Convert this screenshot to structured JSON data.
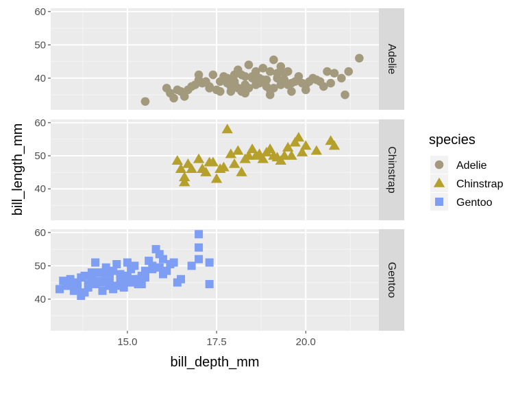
{
  "chart_data": {
    "type": "scatter",
    "facet_by": "species",
    "xlabel": "bill_depth_mm",
    "ylabel": "bill_length_mm",
    "xlim": [
      12.85,
      22.05
    ],
    "ylim": [
      30.5,
      61.0
    ],
    "xticks": [
      15.0,
      17.5,
      20.0
    ],
    "xtick_labels": [
      "15.0",
      "17.5",
      "20.0"
    ],
    "yticks": [
      40,
      50,
      60
    ],
    "ytick_labels": [
      "40",
      "50",
      "60"
    ],
    "grid": true,
    "legend": {
      "title": "species",
      "position": "right",
      "entries": [
        "Adelie",
        "Chinstrap",
        "Gentoo"
      ]
    },
    "series": [
      {
        "name": "Adelie",
        "color": "#A39A7E",
        "shape": "circle",
        "x": [
          15.5,
          16.2,
          16.5,
          16.9,
          16.7,
          17.0,
          17.3,
          17.7,
          18.0,
          18.2,
          18.4,
          18.7,
          18.9,
          19.1,
          19.3,
          19.5,
          19.7,
          20.0,
          20.3,
          20.6,
          21.1,
          21.5,
          16.1,
          16.6,
          17.1,
          17.4,
          17.6,
          17.9,
          18.1,
          18.3,
          18.5,
          18.6,
          18.8,
          19.0,
          19.2,
          19.4,
          19.6,
          19.9,
          20.2,
          20.5,
          20.8,
          21.2,
          16.3,
          16.8,
          17.2,
          17.5,
          17.8,
          18.0,
          18.2,
          18.4,
          18.6,
          18.9,
          19.1,
          19.3,
          19.8,
          20.1,
          20.7,
          21.0,
          17.0,
          17.9,
          18.3,
          18.7,
          19.0,
          19.4,
          17.3,
          17.8,
          18.1,
          18.5,
          18.8,
          19.2,
          19.5,
          20.4,
          16.4,
          17.6,
          18.0,
          19.0,
          19.6,
          18.3,
          20.0
        ],
        "y": [
          33.0,
          35.5,
          36.0,
          38.0,
          36.5,
          39.5,
          37.0,
          40.5,
          39.0,
          41.0,
          44.0,
          40.0,
          37.5,
          45.5,
          38.0,
          42.0,
          39.0,
          38.0,
          39.5,
          42.0,
          35.0,
          46.0,
          37.0,
          34.5,
          38.5,
          41.0,
          36.0,
          37.5,
          42.5,
          35.5,
          40.5,
          38.0,
          43.0,
          36.5,
          40.0,
          41.5,
          36.0,
          38.5,
          40.0,
          37.5,
          41.5,
          42.0,
          34.0,
          37.5,
          39.0,
          36.5,
          40.0,
          38.5,
          36.0,
          37.0,
          42.0,
          39.5,
          37.0,
          43.5,
          40.5,
          39.0,
          38.5,
          40.0,
          41.0,
          36.0,
          40.5,
          38.5,
          35.0,
          39.5,
          37.5,
          38.5,
          37.0,
          40.0,
          39.5,
          41.5,
          38.0,
          39.0,
          36.5,
          39.0,
          41.0,
          42.0,
          38.5,
          38.0,
          36.5
        ]
      },
      {
        "name": "Chinstrap",
        "color": "#B5A02C",
        "shape": "triangle",
        "x": [
          16.4,
          16.5,
          16.6,
          16.6,
          16.7,
          16.8,
          17.0,
          17.1,
          17.2,
          17.3,
          17.5,
          17.6,
          17.8,
          17.9,
          18.0,
          18.1,
          18.2,
          18.3,
          18.5,
          18.6,
          18.7,
          18.8,
          18.9,
          19.0,
          19.1,
          19.3,
          19.4,
          19.5,
          19.6,
          19.7,
          19.8,
          19.9,
          20.0,
          20.3,
          20.7,
          20.8,
          17.4,
          17.7,
          18.4,
          19.2
        ],
        "y": [
          48.5,
          46.0,
          43.5,
          42.0,
          47.5,
          46.0,
          49.0,
          46.0,
          45.0,
          48.0,
          43.0,
          46.0,
          58.0,
          50.5,
          47.5,
          51.5,
          45.0,
          49.0,
          52.0,
          50.0,
          50.5,
          49.0,
          51.0,
          52.0,
          50.0,
          48.5,
          50.0,
          52.5,
          50.0,
          54.0,
          55.5,
          51.0,
          53.0,
          51.5,
          54.5,
          53.0,
          48.0,
          46.5,
          50.0,
          49.5
        ]
      },
      {
        "name": "Gentoo",
        "color": "#7D9EF2",
        "shape": "square",
        "x": [
          13.1,
          13.2,
          13.3,
          13.4,
          13.5,
          13.6,
          13.7,
          13.8,
          13.9,
          14.0,
          14.1,
          14.2,
          14.3,
          14.4,
          14.5,
          14.6,
          14.7,
          14.8,
          14.9,
          15.0,
          15.1,
          15.2,
          15.3,
          15.4,
          15.5,
          15.6,
          15.7,
          15.8,
          15.9,
          16.0,
          16.1,
          16.3,
          16.4,
          16.8,
          17.0,
          17.0,
          17.0,
          17.3,
          17.3,
          13.5,
          13.7,
          13.9,
          14.1,
          14.3,
          14.4,
          14.5,
          14.6,
          14.8,
          14.9,
          15.0,
          15.2,
          15.4,
          15.7,
          15.9,
          13.6,
          14.0,
          14.2,
          14.5,
          14.7,
          15.1,
          15.5,
          16.0,
          16.5,
          13.3,
          13.8,
          14.4,
          15.3,
          16.2
        ],
        "y": [
          43.0,
          45.5,
          44.0,
          46.0,
          42.5,
          45.0,
          41.0,
          47.0,
          44.5,
          46.5,
          51.0,
          48.0,
          45.0,
          49.5,
          46.0,
          43.0,
          50.5,
          47.5,
          45.0,
          51.0,
          49.0,
          50.0,
          46.0,
          47.0,
          48.5,
          51.5,
          50.0,
          55.0,
          49.5,
          52.0,
          48.5,
          51.0,
          45.0,
          50.0,
          59.5,
          55.5,
          52.0,
          51.0,
          44.5,
          44.0,
          46.5,
          43.5,
          44.5,
          42.5,
          47.0,
          44.0,
          48.5,
          45.5,
          43.5,
          47.0,
          46.0,
          44.5,
          49.0,
          53.5,
          43.0,
          48.0,
          45.5,
          47.0,
          44.0,
          45.0,
          46.5,
          47.5,
          46.0,
          45.0,
          42.0,
          48.5,
          44.5,
          50.5
        ]
      }
    ]
  }
}
